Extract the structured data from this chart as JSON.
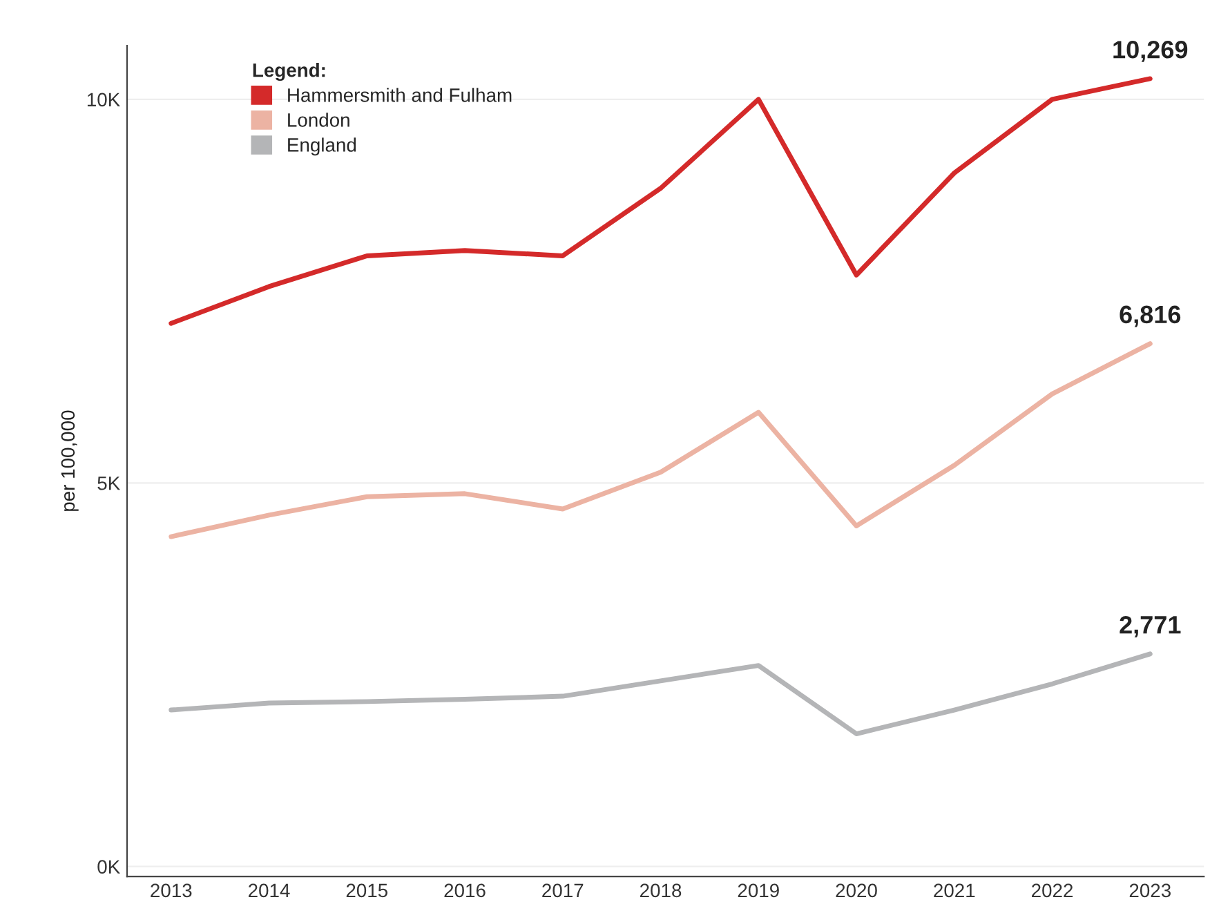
{
  "chart_data": {
    "type": "line",
    "ylabel": "per 100,000",
    "legend_title": "Legend:",
    "legend": "top left",
    "grid": "y",
    "categories": [
      "2013",
      "2014",
      "2015",
      "2016",
      "2017",
      "2018",
      "2019",
      "2020",
      "2021",
      "2022",
      "2023"
    ],
    "ylim": [
      -130,
      10700
    ],
    "yticks": [
      {
        "value": 0,
        "label": "0K"
      },
      {
        "value": 5000,
        "label": "5K"
      },
      {
        "value": 10000,
        "label": "10K"
      }
    ],
    "series": [
      {
        "name": "Hammersmith and Fulham",
        "color": "#d42a2a",
        "values": [
          7080,
          7560,
          7960,
          8030,
          7960,
          8840,
          10000,
          7710,
          9040,
          10000,
          10269
        ],
        "value_labels": [
          null,
          null,
          null,
          null,
          null,
          null,
          null,
          null,
          null,
          null,
          "10,269"
        ]
      },
      {
        "name": "London",
        "color": "#ecb3a3",
        "values": [
          4300,
          4580,
          4820,
          4860,
          4660,
          5140,
          5920,
          4440,
          5230,
          6160,
          6816
        ],
        "value_labels": [
          null,
          null,
          null,
          null,
          null,
          null,
          null,
          null,
          null,
          null,
          "6,816"
        ]
      },
      {
        "name": "England",
        "color": "#b4b5b7",
        "values": [
          2040,
          2130,
          2150,
          2180,
          2220,
          2420,
          2620,
          1730,
          2040,
          2380,
          2771
        ],
        "value_labels": [
          null,
          null,
          null,
          null,
          null,
          null,
          null,
          null,
          null,
          null,
          "2,771"
        ]
      }
    ]
  }
}
